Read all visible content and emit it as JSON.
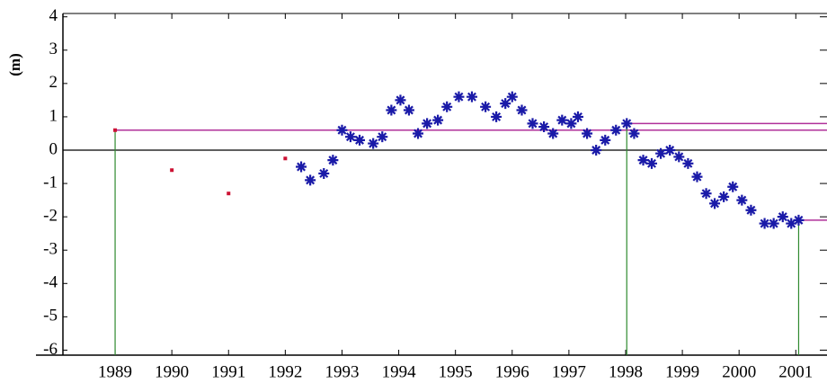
{
  "chart_data": {
    "type": "scatter",
    "ylabel": "(m)",
    "xlim": [
      1988.08,
      2001.55
    ],
    "ylim": [
      -6.15,
      4.1
    ],
    "xticks": [
      1989,
      1990,
      1991,
      1992,
      1993,
      1994,
      1995,
      1996,
      1997,
      1998,
      1999,
      2000,
      2001
    ],
    "yticks": [
      4,
      3,
      2,
      1,
      0,
      -1,
      -2,
      -3,
      -4,
      -5,
      -6
    ],
    "zero_line": true,
    "series": [
      {
        "marker": "square",
        "color": "#cc1133",
        "x": [
          1989.0,
          1990.0,
          1991.0,
          1992.0
        ],
        "values": [
          0.6,
          -0.6,
          -1.3,
          -0.25
        ]
      },
      {
        "marker": "asterisk",
        "color": "#1a1aa8",
        "x": [
          1992.28,
          1992.44,
          1992.68,
          1992.84,
          1993.0,
          1993.15,
          1993.31,
          1993.55,
          1993.71,
          1993.87,
          1994.03,
          1994.18,
          1994.34,
          1994.5,
          1994.69,
          1994.85,
          1995.06,
          1995.29,
          1995.53,
          1995.72,
          1995.88,
          1996.0,
          1996.17,
          1996.36,
          1996.56,
          1996.72,
          1996.88,
          1997.04,
          1997.16,
          1997.32,
          1997.48,
          1997.64,
          1997.83,
          1998.02,
          1998.15,
          1998.31,
          1998.46,
          1998.62,
          1998.78,
          1998.94,
          1999.1,
          1999.26,
          1999.42,
          1999.57,
          1999.73,
          1999.89,
          2000.05,
          2000.21,
          2000.45,
          2000.61,
          2000.77,
          2000.92,
          2001.05
        ],
        "values": [
          -0.5,
          -0.9,
          -0.7,
          -0.3,
          0.6,
          0.4,
          0.3,
          0.2,
          0.4,
          1.2,
          1.5,
          1.2,
          0.5,
          0.8,
          0.9,
          1.3,
          1.6,
          1.6,
          1.3,
          1.0,
          1.4,
          1.6,
          1.2,
          0.8,
          0.7,
          0.5,
          0.9,
          0.8,
          1.0,
          0.5,
          0.0,
          0.3,
          0.6,
          0.8,
          0.5,
          -0.3,
          -0.4,
          -0.1,
          0.0,
          -0.2,
          -0.4,
          -0.8,
          -1.3,
          -1.6,
          -1.4,
          -1.1,
          -1.5,
          -1.8,
          -2.2,
          -2.2,
          -2.0,
          -2.2,
          -2.1
        ]
      }
    ],
    "levels": {
      "level_color": "#b0309a",
      "drop_color": "#2f8a2f",
      "x": [
        1989.0,
        1998.02,
        2001.05
      ],
      "values": [
        0.6,
        0.8,
        -2.1
      ]
    }
  }
}
